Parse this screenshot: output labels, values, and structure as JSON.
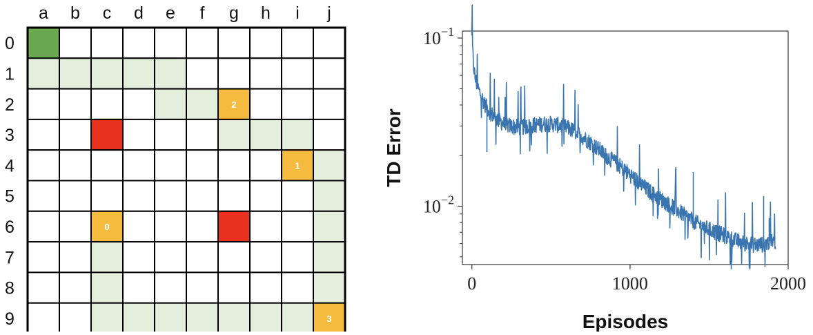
{
  "gridworld": {
    "columns": [
      "a",
      "b",
      "c",
      "d",
      "e",
      "f",
      "g",
      "h",
      "i",
      "j"
    ],
    "rows": [
      "0",
      "1",
      "2",
      "3",
      "4",
      "5",
      "6",
      "7",
      "8",
      "9"
    ],
    "colors": {
      "empty": "#ffffff",
      "start": "#6aa84f",
      "path": "#e4eedc",
      "obstacle": "#e8321e",
      "goal": "#f4bb3e"
    },
    "start": [
      "a0"
    ],
    "path": [
      "a1",
      "b1",
      "c1",
      "d1",
      "e1",
      "e2",
      "f2",
      "g3",
      "h3",
      "i3",
      "j4",
      "j5",
      "j6",
      "j7",
      "j8",
      "c7",
      "c8",
      "c9",
      "d9",
      "e9",
      "f9",
      "g9",
      "h9",
      "i9"
    ],
    "obstacles": [
      "c3",
      "g6"
    ],
    "goals": [
      {
        "cell": "g2",
        "label": "2"
      },
      {
        "cell": "i4",
        "label": "1"
      },
      {
        "cell": "c6",
        "label": "0"
      },
      {
        "cell": "j9",
        "label": "3"
      }
    ]
  },
  "chart_data": {
    "type": "line",
    "title": "",
    "xlabel": "Episodes",
    "ylabel": "TD Error",
    "xlim": [
      -60,
      2000
    ],
    "ylim": [
      0.0045,
      0.11
    ],
    "yscale": "log",
    "grid": false,
    "line_color": "#3a75b0",
    "xticks": [
      0,
      1000,
      2000
    ],
    "xtick_labels": [
      "0",
      "1000",
      "2000"
    ],
    "yticks": [
      0.1,
      0.01
    ],
    "ytick_labels": [
      {
        "base": "10",
        "exp": "−1"
      },
      {
        "base": "10",
        "exp": "−2"
      }
    ],
    "series": [
      {
        "x": [
          0,
          10,
          20,
          40,
          60,
          80,
          100,
          130,
          160,
          200,
          250,
          300,
          350,
          400,
          450,
          500,
          550,
          600,
          650,
          700,
          750,
          800,
          850,
          900,
          950,
          1000,
          1050,
          1100,
          1150,
          1200,
          1250,
          1300,
          1350,
          1400,
          1450,
          1500,
          1550,
          1600,
          1650,
          1700,
          1750,
          1800,
          1850,
          1900,
          1920
        ],
        "y": [
          0.1,
          0.07,
          0.058,
          0.05,
          0.045,
          0.041,
          0.038,
          0.035,
          0.033,
          0.031,
          0.03,
          0.0295,
          0.03,
          0.0305,
          0.031,
          0.031,
          0.0305,
          0.0295,
          0.028,
          0.026,
          0.024,
          0.022,
          0.02,
          0.0185,
          0.017,
          0.0155,
          0.014,
          0.0128,
          0.0118,
          0.011,
          0.0102,
          0.0095,
          0.0088,
          0.0082,
          0.0077,
          0.0073,
          0.007,
          0.0067,
          0.0064,
          0.0061,
          0.006,
          0.0059,
          0.006,
          0.0062,
          0.0062
        ]
      }
    ]
  }
}
